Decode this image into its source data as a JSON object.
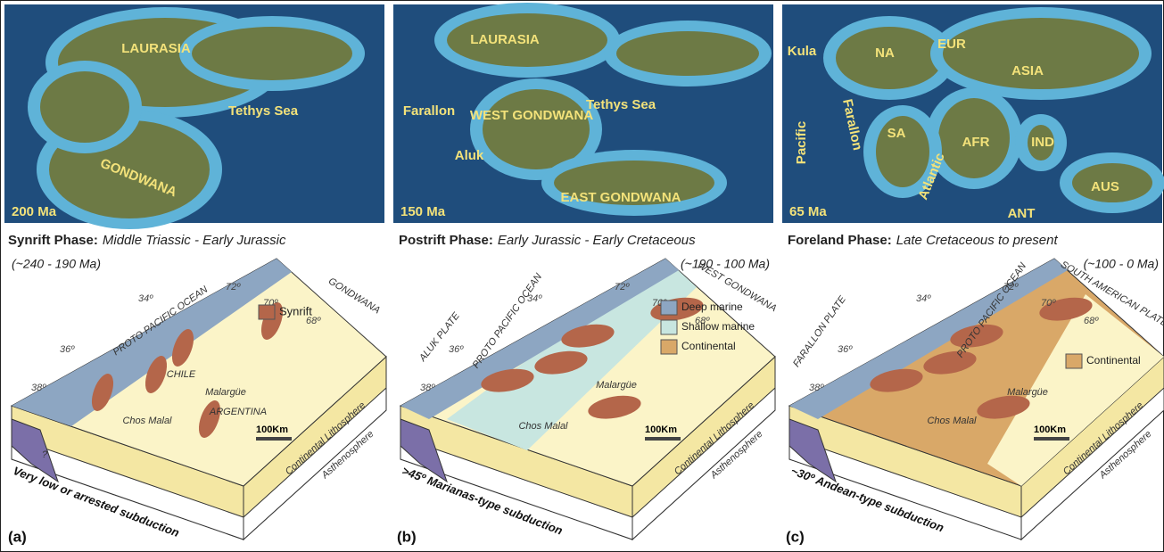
{
  "panels": [
    {
      "letter": "(a)",
      "map_age": "200 Ma",
      "map_labels": [
        "LAURASIA",
        "Tethys Sea",
        "GONDWANA"
      ],
      "phase_name": "Synrift Phase:",
      "phase_period": "Middle Triassic - Early Jurassic",
      "phase_age": "(~240 - 190 Ma)",
      "degrees": [
        "34º",
        "72º",
        "70º",
        "68º",
        "36º",
        "38º"
      ],
      "block_labels": [
        "GONDWANA",
        "PROTO PACIFIC OCEAN",
        "CHILE",
        "ARGENTINA",
        "Malargüe",
        "Chos Malal",
        "?"
      ],
      "legend": [
        "Synrift"
      ],
      "scale": "100Km",
      "lithosphere": "Continental Lithosphere",
      "asthenosphere": "Asthenosphere",
      "subduction": "Very low or arrested subduction"
    },
    {
      "letter": "(b)",
      "map_age": "150 Ma",
      "map_labels": [
        "LAURASIA",
        "WEST GONDWANA",
        "Tethys Sea",
        "Farallon",
        "Aluk",
        "EAST GONDWANA"
      ],
      "phase_name": "Postrift Phase:",
      "phase_period": "Early Jurassic - Early Cretaceous",
      "phase_age": "(~190 - 100 Ma)",
      "degrees": [
        "34º",
        "72º",
        "70º",
        "68º",
        "36º",
        "38º"
      ],
      "block_labels": [
        "ALUK PLATE",
        "WEST GONDWANA",
        "PROTO PACIFIC OCEAN",
        "Malargüe",
        "Chos Malal"
      ],
      "legend": [
        "Deep marine",
        "Shallow marine",
        "Continental"
      ],
      "scale": "100Km",
      "lithosphere": "Continental Lithosphere",
      "asthenosphere": "Asthenosphere",
      "subduction": ">45º Marianas-type subduction"
    },
    {
      "letter": "(c)",
      "map_age": "65 Ma",
      "map_labels": [
        "Kula",
        "NA",
        "EUR",
        "ASIA",
        "Pacific",
        "Farallon",
        "SA",
        "AFR",
        "IND",
        "Atlantic",
        "AUS",
        "ANT"
      ],
      "phase_name": "Foreland Phase:",
      "phase_period": "Late Cretaceous to present",
      "phase_age": "(~100 - 0 Ma)",
      "degrees": [
        "34º",
        "72º",
        "70º",
        "68º",
        "36º",
        "38º"
      ],
      "block_labels": [
        "FARALLON PLATE",
        "SOUTH AMERICAN PLATE",
        "PROTO PACIFIC OCEAN",
        "Malargüe",
        "Chos Malal"
      ],
      "legend": [
        "Continental"
      ],
      "scale": "100Km",
      "lithosphere": "Continental Lithosphere",
      "asthenosphere": "Asthenosphere",
      "subduction": "~30º Andean-type subduction"
    }
  ]
}
